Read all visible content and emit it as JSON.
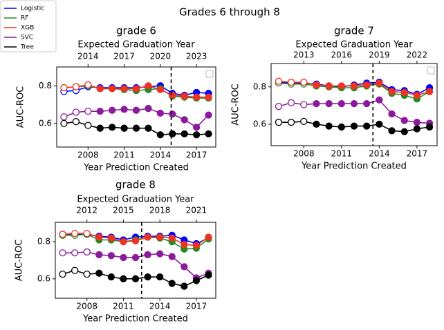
{
  "title": "Grades 6 through 8",
  "legend_position": "upper left",
  "chart_data": [
    {
      "type": "line",
      "title": "grade 6",
      "xlabel": "Year Prediction Created",
      "ylabel": "AUC-ROC",
      "x2label": "Expected Graduation Year",
      "x": [
        2006,
        2007,
        2008,
        2009,
        2010,
        2011,
        2012,
        2013,
        2014,
        2015,
        2016,
        2017,
        2018
      ],
      "series": [
        {
          "name": "Logistic",
          "color": "#0000ff",
          "values": [
            0.77,
            0.775,
            0.795,
            0.79,
            0.79,
            0.79,
            0.79,
            0.795,
            0.8,
            0.76,
            0.75,
            0.765,
            0.76
          ]
        },
        {
          "name": "RF",
          "color": "#228b22",
          "values": [
            0.79,
            0.795,
            0.8,
            0.785,
            0.785,
            0.78,
            0.775,
            0.78,
            0.785,
            0.745,
            0.74,
            0.735,
            0.735
          ]
        },
        {
          "name": "XGB",
          "color": "#ee3322",
          "values": [
            0.79,
            0.795,
            0.805,
            0.785,
            0.785,
            0.785,
            0.785,
            0.8,
            0.78,
            0.75,
            0.745,
            0.74,
            0.74
          ]
        },
        {
          "name": "SVC",
          "color": "#8b1a9c",
          "values": [
            0.635,
            0.66,
            0.665,
            0.665,
            0.67,
            0.675,
            0.67,
            0.68,
            0.655,
            0.65,
            0.62,
            0.58,
            0.645
          ]
        },
        {
          "name": "Tree",
          "color": "#000000",
          "values": [
            0.6,
            0.61,
            0.59,
            0.575,
            0.58,
            0.575,
            0.575,
            0.575,
            0.54,
            0.545,
            0.545,
            0.54,
            0.545
          ]
        }
      ],
      "xlim": [
        2005.4,
        2018.6
      ],
      "xticks": [
        2008,
        2011,
        2014,
        2017
      ],
      "x2lim": [
        2011.4,
        2024.6
      ],
      "x2ticks": [
        2014,
        2017,
        2020,
        2023
      ],
      "ylim": [
        0.475,
        0.9
      ],
      "yticks": [
        0.6,
        0.8
      ],
      "vline": 2014.9,
      "hollow_through": 2008
    },
    {
      "type": "line",
      "title": "grade 7",
      "xlabel": "Year Prediction Created",
      "ylabel": "AUC-ROC",
      "x2label": "Expected Graduation Year",
      "x": [
        2006,
        2007,
        2008,
        2009,
        2010,
        2011,
        2012,
        2013,
        2014,
        2015,
        2016,
        2017,
        2018
      ],
      "series": [
        {
          "name": "Logistic",
          "color": "#0000ff",
          "values": [
            0.825,
            0.82,
            0.82,
            0.815,
            0.805,
            0.8,
            0.81,
            0.82,
            0.825,
            0.785,
            0.78,
            0.76,
            0.795
          ]
        },
        {
          "name": "RF",
          "color": "#228b22",
          "values": [
            0.82,
            0.815,
            0.815,
            0.805,
            0.8,
            0.795,
            0.795,
            0.805,
            0.815,
            0.765,
            0.755,
            0.735,
            0.775
          ]
        },
        {
          "name": "XGB",
          "color": "#ee3322",
          "values": [
            0.83,
            0.825,
            0.825,
            0.81,
            0.805,
            0.805,
            0.805,
            0.81,
            0.82,
            0.775,
            0.77,
            0.755,
            0.775
          ]
        },
        {
          "name": "SVC",
          "color": "#8b1a9c",
          "values": [
            0.695,
            0.715,
            0.705,
            0.71,
            0.71,
            0.71,
            0.71,
            0.71,
            0.73,
            0.655,
            0.62,
            0.61,
            0.605
          ]
        },
        {
          "name": "Tree",
          "color": "#000000",
          "values": [
            0.61,
            0.61,
            0.615,
            0.6,
            0.59,
            0.585,
            0.59,
            0.59,
            0.6,
            0.565,
            0.56,
            0.575,
            0.585
          ]
        }
      ],
      "xlim": [
        2005.4,
        2018.6
      ],
      "xticks": [
        2008,
        2011,
        2014,
        2017
      ],
      "x2lim": [
        2010.4,
        2023.6
      ],
      "x2ticks": [
        2013,
        2016,
        2019,
        2022
      ],
      "ylim": [
        0.485,
        0.925
      ],
      "yticks": [
        0.6,
        0.8
      ],
      "vline": 2013.5,
      "hollow_through": 2008
    },
    {
      "type": "line",
      "title": "grade 8",
      "xlabel": "Year Prediction Created",
      "ylabel": "AUC-ROC",
      "x2label": "Expected Graduation Year",
      "x": [
        2006,
        2007,
        2008,
        2009,
        2010,
        2011,
        2012,
        2013,
        2014,
        2015,
        2016,
        2017,
        2018
      ],
      "series": [
        {
          "name": "Logistic",
          "color": "#0000ff",
          "values": [
            0.84,
            0.84,
            0.84,
            0.83,
            0.825,
            0.81,
            0.825,
            0.83,
            0.83,
            0.835,
            0.81,
            0.79,
            0.82
          ]
        },
        {
          "name": "RF",
          "color": "#228b22",
          "values": [
            0.835,
            0.835,
            0.84,
            0.81,
            0.81,
            0.8,
            0.81,
            0.825,
            0.82,
            0.8,
            0.76,
            0.765,
            0.815
          ]
        },
        {
          "name": "XGB",
          "color": "#ee3322",
          "values": [
            0.84,
            0.845,
            0.845,
            0.825,
            0.82,
            0.8,
            0.805,
            0.825,
            0.825,
            0.82,
            0.785,
            0.78,
            0.825
          ]
        },
        {
          "name": "SVC",
          "color": "#8b1a9c",
          "values": [
            0.74,
            0.74,
            0.745,
            0.73,
            0.725,
            0.715,
            0.715,
            0.73,
            0.735,
            0.72,
            0.665,
            0.605,
            0.63
          ]
        },
        {
          "name": "Tree",
          "color": "#000000",
          "values": [
            0.625,
            0.645,
            0.625,
            0.63,
            0.61,
            0.6,
            0.6,
            0.61,
            0.61,
            0.575,
            0.56,
            0.59,
            0.62
          ]
        }
      ],
      "xlim": [
        2005.4,
        2018.6
      ],
      "xticks": [
        2008,
        2011,
        2014,
        2017
      ],
      "x2lim": [
        2009.4,
        2022.6
      ],
      "x2ticks": [
        2012,
        2015,
        2018,
        2021
      ],
      "ylim": [
        0.495,
        0.905
      ],
      "yticks": [
        0.6,
        0.8
      ],
      "vline": 2012.5,
      "hollow_through": 2008
    }
  ]
}
